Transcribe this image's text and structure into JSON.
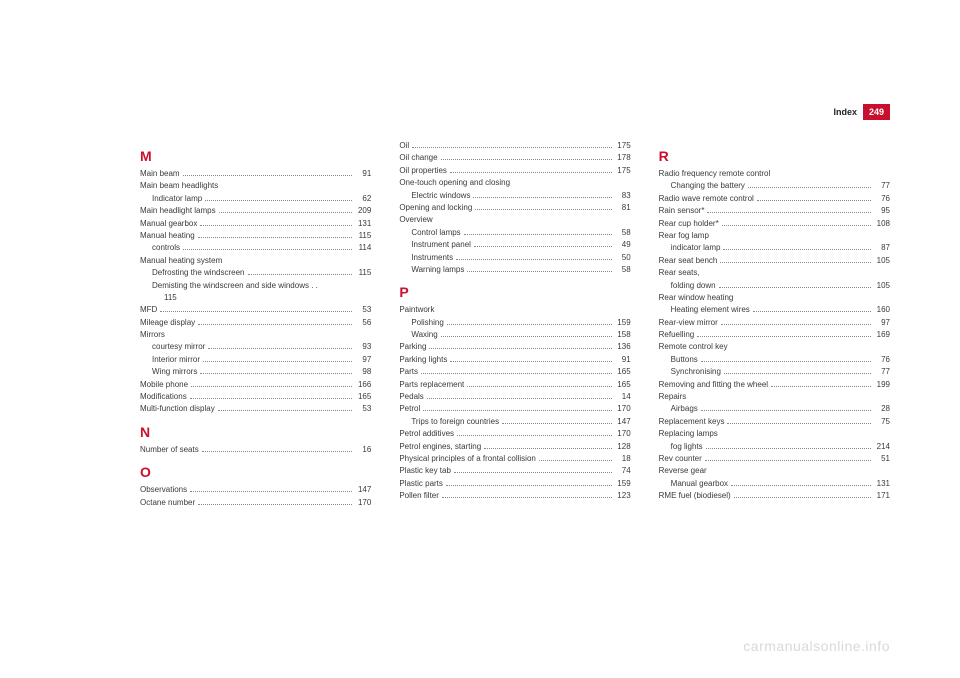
{
  "header": {
    "label": "Index",
    "page": "249"
  },
  "colors": {
    "accent": "#c8102e",
    "text": "#3a3a3a",
    "watermark": "#d9d9d9"
  },
  "watermark": "carmanualsonline.info",
  "columns": [
    {
      "items": [
        {
          "type": "letter",
          "text": "M"
        },
        {
          "type": "entry",
          "label": "Main beam",
          "page": "91"
        },
        {
          "type": "heading",
          "label": "Main beam headlights"
        },
        {
          "type": "entry",
          "sub": true,
          "label": "Indicator lamp",
          "page": "62"
        },
        {
          "type": "entry",
          "label": "Main headlight lamps",
          "page": "209"
        },
        {
          "type": "entry",
          "label": "Manual gearbox",
          "page": "131"
        },
        {
          "type": "entry",
          "label": "Manual heating",
          "page": "115"
        },
        {
          "type": "entry",
          "sub": true,
          "label": "controls",
          "page": "114"
        },
        {
          "type": "heading",
          "label": "Manual heating system"
        },
        {
          "type": "entry",
          "sub": true,
          "label": "Defrosting the windscreen",
          "page": "115"
        },
        {
          "type": "cont",
          "label": "Demisting the windscreen and side windows  . .",
          "page": "115"
        },
        {
          "type": "entry",
          "label": "MFD",
          "page": "53"
        },
        {
          "type": "entry",
          "label": "Mileage display",
          "page": "56"
        },
        {
          "type": "heading",
          "label": "Mirrors"
        },
        {
          "type": "entry",
          "sub": true,
          "label": "courtesy mirror",
          "page": "93"
        },
        {
          "type": "entry",
          "sub": true,
          "label": "Interior mirror",
          "page": "97"
        },
        {
          "type": "entry",
          "sub": true,
          "label": "Wing mirrors",
          "page": "98"
        },
        {
          "type": "entry",
          "label": "Mobile phone",
          "page": "166"
        },
        {
          "type": "entry",
          "label": "Modifications",
          "page": "165"
        },
        {
          "type": "entry",
          "label": "Multi-function display",
          "page": "53"
        },
        {
          "type": "letter",
          "text": "N"
        },
        {
          "type": "entry",
          "label": "Number of seats",
          "page": "16"
        },
        {
          "type": "letter",
          "text": "O"
        },
        {
          "type": "entry",
          "label": "Observations",
          "page": "147"
        },
        {
          "type": "entry",
          "label": "Octane number",
          "page": "170"
        }
      ]
    },
    {
      "items": [
        {
          "type": "entry",
          "label": "Oil",
          "page": "175"
        },
        {
          "type": "entry",
          "label": "Oil change",
          "page": "178"
        },
        {
          "type": "entry",
          "label": "Oil properties",
          "page": "175"
        },
        {
          "type": "heading",
          "label": "One-touch opening and closing"
        },
        {
          "type": "entry",
          "sub": true,
          "label": "Electric windows",
          "page": "83"
        },
        {
          "type": "entry",
          "label": "Opening and locking",
          "page": "81"
        },
        {
          "type": "heading",
          "label": "Overview"
        },
        {
          "type": "entry",
          "sub": true,
          "label": "Control lamps",
          "page": "58"
        },
        {
          "type": "entry",
          "sub": true,
          "label": "Instrument panel",
          "page": "49"
        },
        {
          "type": "entry",
          "sub": true,
          "label": "Instruments",
          "page": "50"
        },
        {
          "type": "entry",
          "sub": true,
          "label": "Warning lamps",
          "page": "58"
        },
        {
          "type": "letter",
          "text": "P"
        },
        {
          "type": "heading",
          "label": "Paintwork"
        },
        {
          "type": "entry",
          "sub": true,
          "label": "Polishing",
          "page": "159"
        },
        {
          "type": "entry",
          "sub": true,
          "label": "Waxing",
          "page": "158"
        },
        {
          "type": "entry",
          "label": "Parking",
          "page": "136"
        },
        {
          "type": "entry",
          "label": "Parking lights",
          "page": "91"
        },
        {
          "type": "entry",
          "label": "Parts",
          "page": "165"
        },
        {
          "type": "entry",
          "label": "Parts replacement",
          "page": "165"
        },
        {
          "type": "entry",
          "label": "Pedals",
          "page": "14"
        },
        {
          "type": "entry",
          "label": "Petrol",
          "page": "170"
        },
        {
          "type": "entry",
          "sub": true,
          "label": "Trips to foreign countries",
          "page": "147"
        },
        {
          "type": "entry",
          "label": "Petrol additives",
          "page": "170"
        },
        {
          "type": "entry",
          "label": "Petrol engines, starting",
          "page": "128"
        },
        {
          "type": "entry",
          "label": "Physical principles of a frontal collision",
          "page": "18"
        },
        {
          "type": "entry",
          "label": "Plastic key tab",
          "page": "74"
        },
        {
          "type": "entry",
          "label": "Plastic parts",
          "page": "159"
        },
        {
          "type": "entry",
          "label": "Pollen filter",
          "page": "123"
        }
      ]
    },
    {
      "items": [
        {
          "type": "letter",
          "text": "R"
        },
        {
          "type": "heading",
          "label": "Radio frequency remote control"
        },
        {
          "type": "entry",
          "sub": true,
          "label": "Changing the battery",
          "page": "77"
        },
        {
          "type": "entry",
          "label": "Radio wave remote control",
          "page": "76"
        },
        {
          "type": "entry",
          "label": "Rain sensor*",
          "page": "95"
        },
        {
          "type": "entry",
          "label": "Rear cup holder*",
          "page": "108"
        },
        {
          "type": "heading",
          "label": "Rear fog lamp"
        },
        {
          "type": "entry",
          "sub": true,
          "label": "indicator lamp",
          "page": "87"
        },
        {
          "type": "entry",
          "label": "Rear seat bench",
          "page": "105"
        },
        {
          "type": "heading",
          "label": "Rear seats,"
        },
        {
          "type": "entry",
          "sub": true,
          "label": "folding down",
          "page": "105"
        },
        {
          "type": "heading",
          "label": "Rear window heating"
        },
        {
          "type": "entry",
          "sub": true,
          "label": "Heating element wires",
          "page": "160"
        },
        {
          "type": "entry",
          "label": "Rear-view mirror",
          "page": "97"
        },
        {
          "type": "entry",
          "label": "Refuelling",
          "page": "169"
        },
        {
          "type": "heading",
          "label": "Remote control key"
        },
        {
          "type": "entry",
          "sub": true,
          "label": "Buttons",
          "page": "76"
        },
        {
          "type": "entry",
          "sub": true,
          "label": "Synchronising",
          "page": "77"
        },
        {
          "type": "entry",
          "label": "Removing and fitting the wheel",
          "page": "199"
        },
        {
          "type": "heading",
          "label": "Repairs"
        },
        {
          "type": "entry",
          "sub": true,
          "label": "Airbags",
          "page": "28"
        },
        {
          "type": "entry",
          "label": "Replacement keys",
          "page": "75"
        },
        {
          "type": "heading",
          "label": "Replacing lamps"
        },
        {
          "type": "entry",
          "sub": true,
          "label": "fog lights",
          "page": "214"
        },
        {
          "type": "entry",
          "label": "Rev counter",
          "page": "51"
        },
        {
          "type": "heading",
          "label": "Reverse gear"
        },
        {
          "type": "entry",
          "sub": true,
          "label": "Manual gearbox",
          "page": "131"
        },
        {
          "type": "entry",
          "label": "RME fuel (biodiesel)",
          "page": "171"
        }
      ]
    }
  ]
}
